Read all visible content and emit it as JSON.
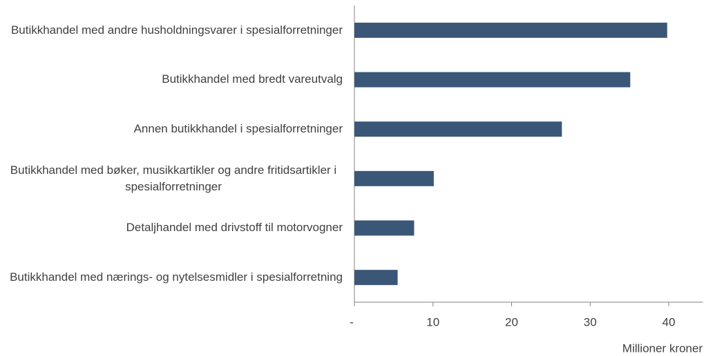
{
  "chart_data": {
    "type": "bar",
    "orientation": "horizontal",
    "categories": [
      "Butikkhandel med andre husholdningsvarer i spesialforretninger",
      "Butikkhandel med bredt vareutvalg",
      "Annen butikkhandel i spesialforretninger",
      "Butikkhandel med bøker, musikkartikler og andre fritidsartikler i spesialforretninger",
      "Detaljhandel med drivstoff til motorvogner",
      "Butikkhandel med nærings- og nytelsesmidler i spesialforretning"
    ],
    "values": [
      39.8,
      35.1,
      26.4,
      10.1,
      7.6,
      5.5
    ],
    "color": "#3a5777",
    "xlim": [
      0,
      44
    ],
    "xticks": [
      {
        "value": 0,
        "label": "-"
      },
      10,
      20,
      30,
      40
    ],
    "x_label": "Millioner kroner"
  }
}
